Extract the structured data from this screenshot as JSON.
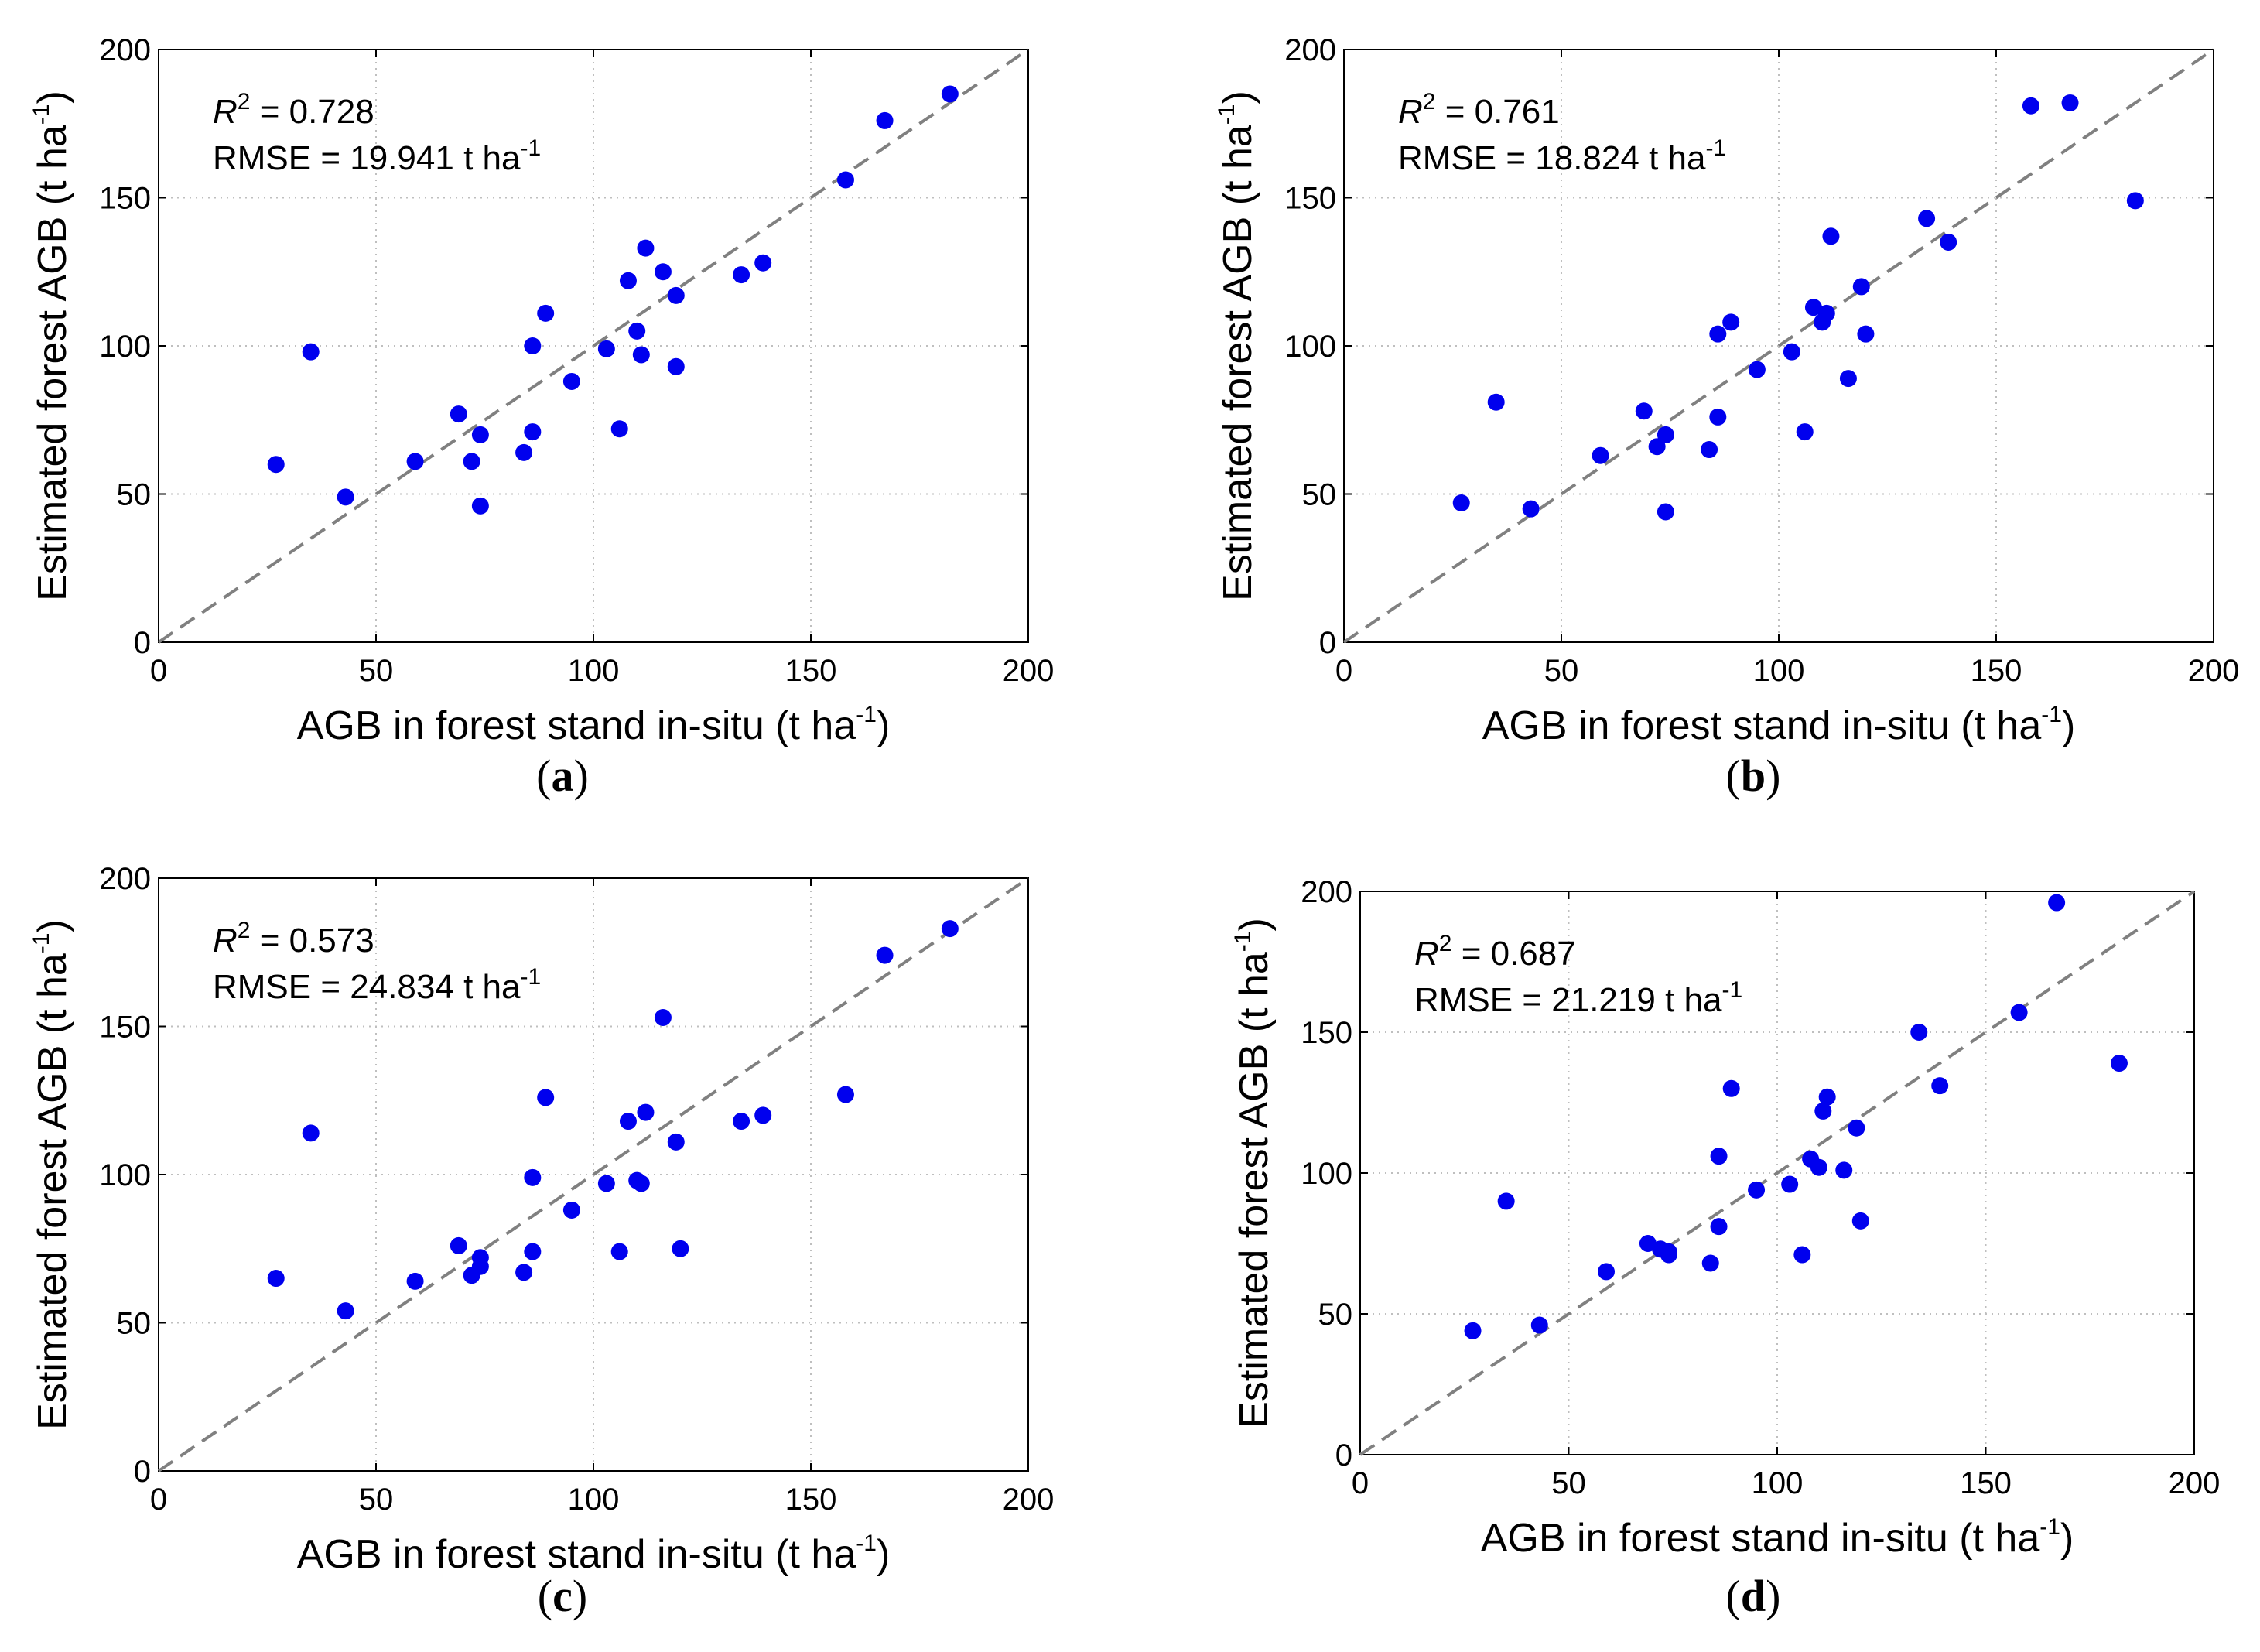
{
  "chart_data": [
    {
      "type": "scatter",
      "caption_letter": "a",
      "xlabel": "AGB in forest stand in-situ (t ha",
      "ylabel": "Estimated forest AGB (t ha",
      "unit_exponent": "-1",
      "r2_label": "R",
      "r2_exponent": "2",
      "r2_value": " = 0.728",
      "rmse_text": "RMSE = 19.941 t ha",
      "xlim": [
        0,
        200
      ],
      "ylim": [
        0,
        200
      ],
      "xticks": [
        "0",
        "50",
        "100",
        "150",
        "200"
      ],
      "yticks": [
        "0",
        "50",
        "100",
        "150",
        "200"
      ],
      "grid": true,
      "reference_line": "1:1 dashed",
      "x": [
        27,
        35,
        43,
        59,
        69,
        72,
        74,
        74,
        84,
        86,
        86,
        89,
        95,
        103,
        106,
        108,
        110,
        111,
        112,
        116,
        119,
        119,
        134,
        139,
        158,
        167,
        182
      ],
      "y": [
        60,
        98,
        49,
        61,
        77,
        61,
        70,
        46,
        64,
        71,
        100,
        111,
        88,
        99,
        72,
        122,
        105,
        97,
        133,
        125,
        117,
        93,
        124,
        128,
        156,
        176,
        185
      ]
    },
    {
      "type": "scatter",
      "caption_letter": "b",
      "xlabel": "AGB in forest stand in-situ (t ha",
      "ylabel": "Estimated forest AGB (t ha",
      "unit_exponent": "-1",
      "r2_label": "R",
      "r2_exponent": "2",
      "r2_value": " = 0.761",
      "rmse_text": "RMSE = 18.824 t ha",
      "xlim": [
        0,
        200
      ],
      "ylim": [
        0,
        200
      ],
      "xticks": [
        "0",
        "50",
        "100",
        "150",
        "200"
      ],
      "yticks": [
        "0",
        "50",
        "100",
        "150",
        "200"
      ],
      "grid": true,
      "reference_line": "1:1 dashed",
      "x": [
        27,
        35,
        43,
        59,
        69,
        72,
        74,
        74,
        84,
        86,
        86,
        89,
        95,
        103,
        106,
        108,
        110,
        111,
        112,
        116,
        119,
        120,
        134,
        139,
        158,
        167,
        182
      ],
      "y": [
        47,
        81,
        45,
        63,
        78,
        66,
        70,
        44,
        65,
        76,
        104,
        108,
        92,
        98,
        71,
        113,
        108,
        111,
        137,
        89,
        120,
        104,
        143,
        135,
        181,
        182,
        149
      ]
    },
    {
      "type": "scatter",
      "caption_letter": "c",
      "xlabel": "AGB in forest stand in-situ (t ha",
      "ylabel": "Estimated forest AGB (t ha",
      "unit_exponent": "-1",
      "r2_label": "R",
      "r2_exponent": "2",
      "r2_value": " = 0.573",
      "rmse_text": "RMSE = 24.834 t ha",
      "xlim": [
        0,
        200
      ],
      "ylim": [
        0,
        200
      ],
      "xticks": [
        "0",
        "50",
        "100",
        "150",
        "200"
      ],
      "yticks": [
        "0",
        "50",
        "100",
        "150",
        "200"
      ],
      "grid": true,
      "reference_line": "1:1 dashed",
      "x": [
        27,
        35,
        43,
        59,
        69,
        72,
        74,
        74,
        84,
        86,
        86,
        89,
        95,
        103,
        106,
        108,
        110,
        111,
        112,
        116,
        119,
        120,
        134,
        139,
        158,
        167,
        182
      ],
      "y": [
        65,
        114,
        54,
        64,
        76,
        66,
        72,
        69,
        67,
        74,
        99,
        126,
        88,
        97,
        74,
        118,
        98,
        97,
        121,
        153,
        111,
        75,
        118,
        120,
        127,
        174,
        183
      ]
    },
    {
      "type": "scatter",
      "caption_letter": "d",
      "xlabel": "AGB in forest stand in-situ (t ha",
      "ylabel": "Estimated forest AGB (t ha",
      "unit_exponent": "-1",
      "r2_label": "R",
      "r2_exponent": "2",
      "r2_value": " = 0.687",
      "rmse_text": "RMSE = 21.219 t ha",
      "xlim": [
        0,
        200
      ],
      "ylim": [
        0,
        200
      ],
      "xticks": [
        "0",
        "50",
        "100",
        "150",
        "200"
      ],
      "yticks": [
        "0",
        "50",
        "100",
        "150",
        "200"
      ],
      "grid": true,
      "reference_line": "1:1 dashed",
      "x": [
        27,
        35,
        43,
        59,
        69,
        72,
        74,
        74,
        84,
        86,
        86,
        89,
        95,
        103,
        106,
        108,
        110,
        111,
        112,
        116,
        119,
        120,
        134,
        139,
        158,
        167,
        182
      ],
      "y": [
        44,
        90,
        46,
        65,
        75,
        73,
        72,
        71,
        68,
        81,
        106,
        130,
        94,
        96,
        71,
        105,
        102,
        122,
        127,
        101,
        116,
        83,
        150,
        131,
        157,
        196,
        139
      ]
    }
  ],
  "colors": {
    "marker": "#0000ee",
    "reference_line": "#808080",
    "grid": "#bfbfbf",
    "axes": "#000000"
  }
}
